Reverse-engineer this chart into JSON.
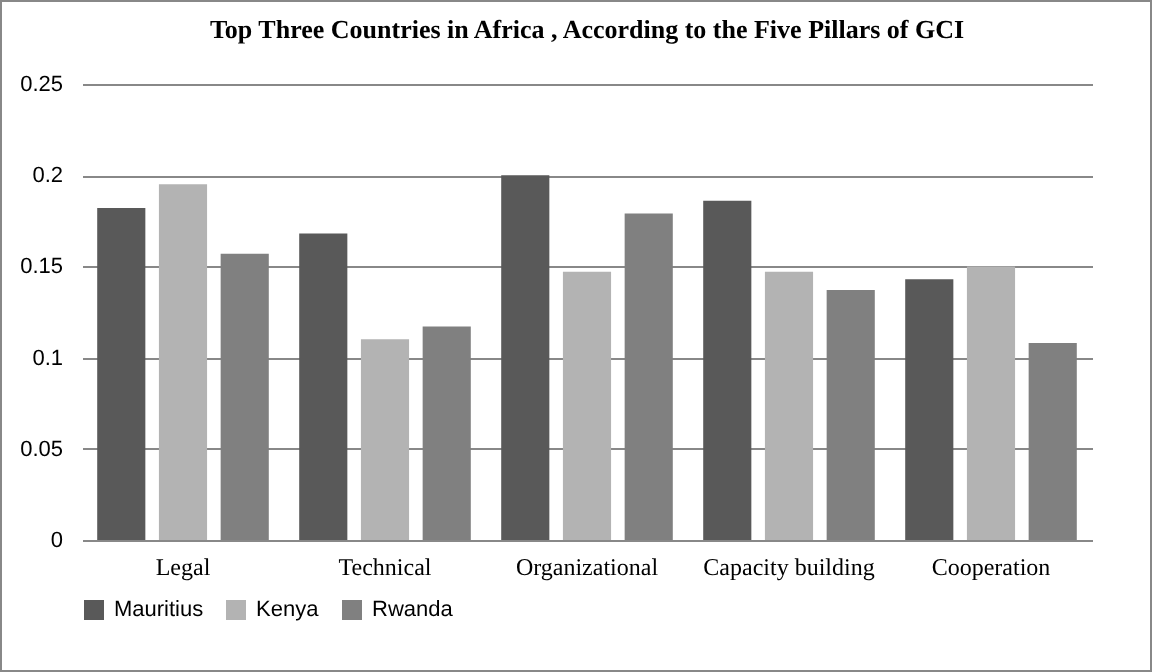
{
  "chart_data": {
    "type": "bar",
    "title": "Top Three Countries in Africa , According to the Five Pillars of GCI",
    "categories": [
      "Legal",
      "Technical",
      "Organizational",
      "Capacity building",
      "Cooperation"
    ],
    "series": [
      {
        "name": "Mauritius",
        "color": "#595959",
        "values": [
          0.182,
          0.168,
          0.2,
          0.186,
          0.143
        ]
      },
      {
        "name": "Kenya",
        "color": "#b3b3b3",
        "values": [
          0.195,
          0.11,
          0.147,
          0.147,
          0.15
        ]
      },
      {
        "name": "Rwanda",
        "color": "#808080",
        "values": [
          0.157,
          0.117,
          0.179,
          0.137,
          0.108
        ]
      }
    ],
    "ylim": [
      0,
      0.25
    ],
    "yticks": [
      0,
      0.05,
      0.1,
      0.15,
      0.2,
      0.25
    ],
    "grid": "y",
    "legend": "bottom"
  }
}
